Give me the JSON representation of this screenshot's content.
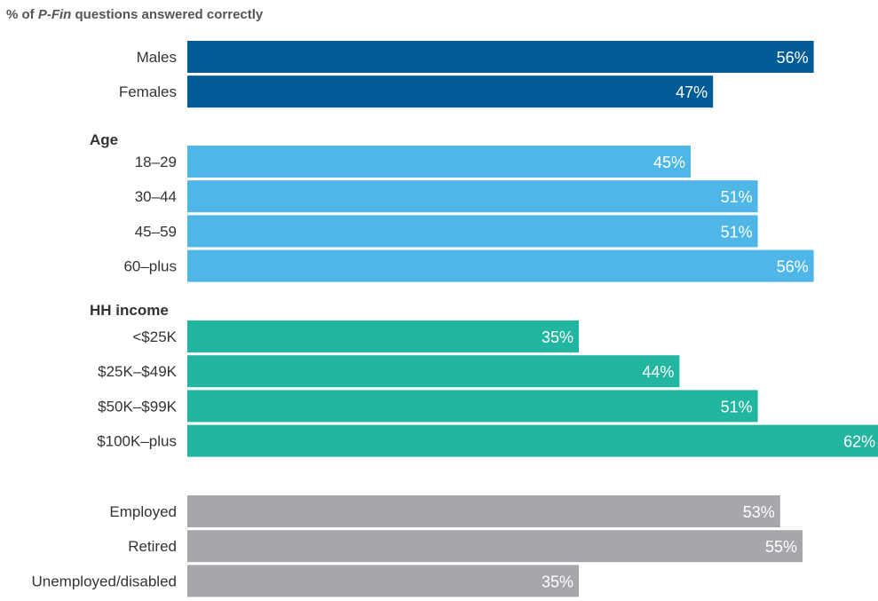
{
  "title": {
    "prefix": "% of ",
    "emphasis": "P-Fin",
    "suffix": " questions answered correctly"
  },
  "colors": {
    "gender": "#005b97",
    "age": "#4eb7e7",
    "income": "#22b6a0",
    "employment": "#a6a7aa",
    "label_text": "#333333",
    "bar_text": "#ffffff"
  },
  "chart_data": {
    "type": "bar",
    "orientation": "horizontal",
    "title": "% of P-Fin questions answered correctly",
    "value_format": "percent",
    "xlim": [
      0,
      62
    ],
    "groups": [
      {
        "heading": "",
        "color_key": "gender",
        "categories": [
          "Males",
          "Females"
        ],
        "values": [
          56,
          47
        ]
      },
      {
        "heading": "Age",
        "color_key": "age",
        "categories": [
          "18–29",
          "30–44",
          "45–59",
          "60–plus"
        ],
        "values": [
          45,
          51,
          51,
          56
        ]
      },
      {
        "heading": "HH income",
        "color_key": "income",
        "categories": [
          "<$25K",
          "$25K–$49K",
          "$50K–$99K",
          "$100K–plus"
        ],
        "values": [
          35,
          44,
          51,
          62
        ]
      },
      {
        "heading": "",
        "color_key": "employment",
        "categories": [
          "Employed",
          "Retired",
          "Unemployed/disabled"
        ],
        "values": [
          53,
          55,
          35
        ]
      }
    ]
  }
}
